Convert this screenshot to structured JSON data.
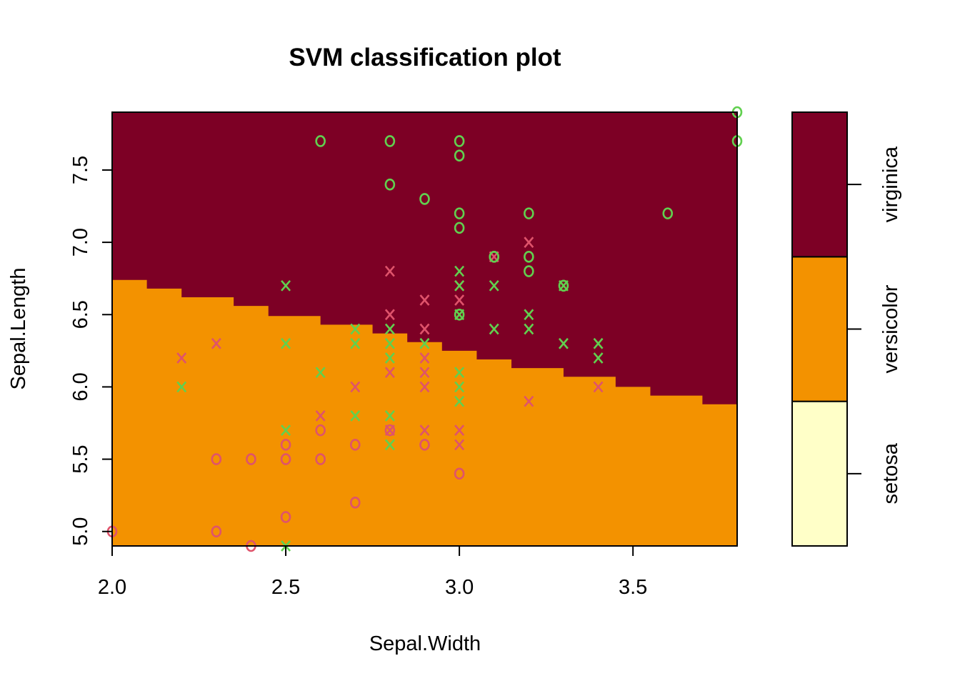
{
  "chart_data": {
    "type": "scatter",
    "title": "SVM classification plot",
    "xlabel": "Sepal.Width",
    "ylabel": "Sepal.Length",
    "xlim": [
      2.0,
      3.8
    ],
    "ylim": [
      4.9,
      7.9
    ],
    "x_ticks": [
      2.0,
      2.5,
      3.0,
      3.5
    ],
    "x_tick_labels": [
      "2.0",
      "2.5",
      "3.0",
      "3.5"
    ],
    "y_ticks": [
      5.0,
      5.5,
      6.0,
      6.5,
      7.0,
      7.5
    ],
    "y_tick_labels": [
      "5.0",
      "5.5",
      "6.0",
      "6.5",
      "7.0",
      "7.5"
    ],
    "classes": [
      {
        "name": "setosa",
        "color": "#FFFFC8"
      },
      {
        "name": "versicolor",
        "color": "#F39200"
      },
      {
        "name": "virginica",
        "color": "#7D0025"
      }
    ],
    "decision_boundary": {
      "description": "versicolor below, virginica above",
      "points": [
        [
          2.0,
          6.74
        ],
        [
          2.1,
          6.74
        ],
        [
          2.1,
          6.68
        ],
        [
          2.2,
          6.68
        ],
        [
          2.2,
          6.62
        ],
        [
          2.35,
          6.62
        ],
        [
          2.35,
          6.56
        ],
        [
          2.45,
          6.56
        ],
        [
          2.45,
          6.49
        ],
        [
          2.6,
          6.49
        ],
        [
          2.6,
          6.43
        ],
        [
          2.75,
          6.43
        ],
        [
          2.75,
          6.37
        ],
        [
          2.85,
          6.37
        ],
        [
          2.85,
          6.31
        ],
        [
          2.95,
          6.31
        ],
        [
          2.95,
          6.25
        ],
        [
          3.05,
          6.25
        ],
        [
          3.05,
          6.19
        ],
        [
          3.15,
          6.19
        ],
        [
          3.15,
          6.13
        ],
        [
          3.3,
          6.13
        ],
        [
          3.3,
          6.07
        ],
        [
          3.45,
          6.07
        ],
        [
          3.45,
          6.0
        ],
        [
          3.55,
          6.0
        ],
        [
          3.55,
          5.94
        ],
        [
          3.7,
          5.94
        ],
        [
          3.7,
          5.88
        ],
        [
          3.8,
          5.88
        ]
      ]
    },
    "series": [
      {
        "name": "versicolor data",
        "color": "#DF536B",
        "points": [
          {
            "x": 2.2,
            "y": 6.2,
            "m": "X"
          },
          {
            "x": 2.3,
            "y": 6.3,
            "m": "X"
          },
          {
            "x": 2.6,
            "y": 5.8,
            "m": "X"
          },
          {
            "x": 2.7,
            "y": 6.0,
            "m": "X"
          },
          {
            "x": 2.8,
            "y": 6.8,
            "m": "X"
          },
          {
            "x": 2.8,
            "y": 6.5,
            "m": "X"
          },
          {
            "x": 2.8,
            "y": 6.1,
            "m": "X"
          },
          {
            "x": 2.8,
            "y": 5.7,
            "m": "X"
          },
          {
            "x": 2.9,
            "y": 6.6,
            "m": "X"
          },
          {
            "x": 2.9,
            "y": 6.4,
            "m": "X"
          },
          {
            "x": 2.9,
            "y": 6.2,
            "m": "X"
          },
          {
            "x": 2.9,
            "y": 6.1,
            "m": "X"
          },
          {
            "x": 2.9,
            "y": 6.0,
            "m": "X"
          },
          {
            "x": 2.9,
            "y": 5.7,
            "m": "X"
          },
          {
            "x": 3.0,
            "y": 6.7,
            "m": "X"
          },
          {
            "x": 3.0,
            "y": 6.6,
            "m": "X"
          },
          {
            "x": 3.0,
            "y": 5.7,
            "m": "X"
          },
          {
            "x": 3.0,
            "y": 5.6,
            "m": "X"
          },
          {
            "x": 3.1,
            "y": 6.9,
            "m": "X"
          },
          {
            "x": 3.2,
            "y": 7.0,
            "m": "X"
          },
          {
            "x": 3.2,
            "y": 5.9,
            "m": "X"
          },
          {
            "x": 3.4,
            "y": 6.0,
            "m": "X"
          },
          {
            "x": 2.0,
            "y": 5.0,
            "m": "O"
          },
          {
            "x": 2.3,
            "y": 5.5,
            "m": "O"
          },
          {
            "x": 2.3,
            "y": 5.0,
            "m": "O"
          },
          {
            "x": 2.4,
            "y": 5.5,
            "m": "O"
          },
          {
            "x": 2.4,
            "y": 4.9,
            "m": "O"
          },
          {
            "x": 2.5,
            "y": 5.6,
            "m": "O"
          },
          {
            "x": 2.5,
            "y": 5.5,
            "m": "O"
          },
          {
            "x": 2.5,
            "y": 5.1,
            "m": "O"
          },
          {
            "x": 2.6,
            "y": 5.7,
            "m": "O"
          },
          {
            "x": 2.6,
            "y": 5.5,
            "m": "O"
          },
          {
            "x": 2.7,
            "y": 5.6,
            "m": "O"
          },
          {
            "x": 2.7,
            "y": 5.2,
            "m": "O"
          },
          {
            "x": 2.8,
            "y": 5.7,
            "m": "O"
          },
          {
            "x": 2.9,
            "y": 5.6,
            "m": "O"
          },
          {
            "x": 3.0,
            "y": 5.4,
            "m": "O"
          },
          {
            "x": 3.1,
            "y": 6.9,
            "m": "O"
          }
        ]
      },
      {
        "name": "virginica data",
        "color": "#61D04F",
        "points": [
          {
            "x": 2.2,
            "y": 6.0,
            "m": "X"
          },
          {
            "x": 2.5,
            "y": 6.7,
            "m": "X"
          },
          {
            "x": 2.5,
            "y": 6.3,
            "m": "X"
          },
          {
            "x": 2.5,
            "y": 5.7,
            "m": "X"
          },
          {
            "x": 2.5,
            "y": 4.9,
            "m": "X"
          },
          {
            "x": 2.6,
            "y": 6.1,
            "m": "X"
          },
          {
            "x": 2.7,
            "y": 6.4,
            "m": "X"
          },
          {
            "x": 2.7,
            "y": 6.3,
            "m": "X"
          },
          {
            "x": 2.7,
            "y": 5.8,
            "m": "X"
          },
          {
            "x": 2.8,
            "y": 6.4,
            "m": "X"
          },
          {
            "x": 2.8,
            "y": 6.3,
            "m": "X"
          },
          {
            "x": 2.8,
            "y": 6.2,
            "m": "X"
          },
          {
            "x": 2.8,
            "y": 5.8,
            "m": "X"
          },
          {
            "x": 2.8,
            "y": 5.6,
            "m": "X"
          },
          {
            "x": 2.9,
            "y": 6.3,
            "m": "X"
          },
          {
            "x": 3.0,
            "y": 6.8,
            "m": "X"
          },
          {
            "x": 3.0,
            "y": 6.7,
            "m": "X"
          },
          {
            "x": 3.0,
            "y": 6.5,
            "m": "X"
          },
          {
            "x": 3.0,
            "y": 6.1,
            "m": "X"
          },
          {
            "x": 3.0,
            "y": 6.0,
            "m": "X"
          },
          {
            "x": 3.0,
            "y": 5.9,
            "m": "X"
          },
          {
            "x": 3.1,
            "y": 6.7,
            "m": "X"
          },
          {
            "x": 3.1,
            "y": 6.4,
            "m": "X"
          },
          {
            "x": 3.2,
            "y": 6.5,
            "m": "X"
          },
          {
            "x": 3.2,
            "y": 6.4,
            "m": "X"
          },
          {
            "x": 3.3,
            "y": 6.7,
            "m": "X"
          },
          {
            "x": 3.3,
            "y": 6.3,
            "m": "X"
          },
          {
            "x": 3.4,
            "y": 6.3,
            "m": "X"
          },
          {
            "x": 3.4,
            "y": 6.2,
            "m": "X"
          },
          {
            "x": 2.6,
            "y": 7.7,
            "m": "O"
          },
          {
            "x": 2.8,
            "y": 7.7,
            "m": "O"
          },
          {
            "x": 2.8,
            "y": 7.4,
            "m": "O"
          },
          {
            "x": 2.9,
            "y": 7.3,
            "m": "O"
          },
          {
            "x": 3.0,
            "y": 7.7,
            "m": "O"
          },
          {
            "x": 3.0,
            "y": 7.6,
            "m": "O"
          },
          {
            "x": 3.0,
            "y": 7.2,
            "m": "O"
          },
          {
            "x": 3.0,
            "y": 7.1,
            "m": "O"
          },
          {
            "x": 3.0,
            "y": 6.5,
            "m": "O"
          },
          {
            "x": 3.1,
            "y": 6.9,
            "m": "O"
          },
          {
            "x": 3.2,
            "y": 7.2,
            "m": "O"
          },
          {
            "x": 3.2,
            "y": 6.9,
            "m": "O"
          },
          {
            "x": 3.2,
            "y": 6.8,
            "m": "O"
          },
          {
            "x": 3.3,
            "y": 6.7,
            "m": "O"
          },
          {
            "x": 3.6,
            "y": 7.2,
            "m": "O"
          },
          {
            "x": 3.8,
            "y": 7.9,
            "m": "O"
          },
          {
            "x": 3.8,
            "y": 7.7,
            "m": "O"
          }
        ]
      }
    ]
  }
}
